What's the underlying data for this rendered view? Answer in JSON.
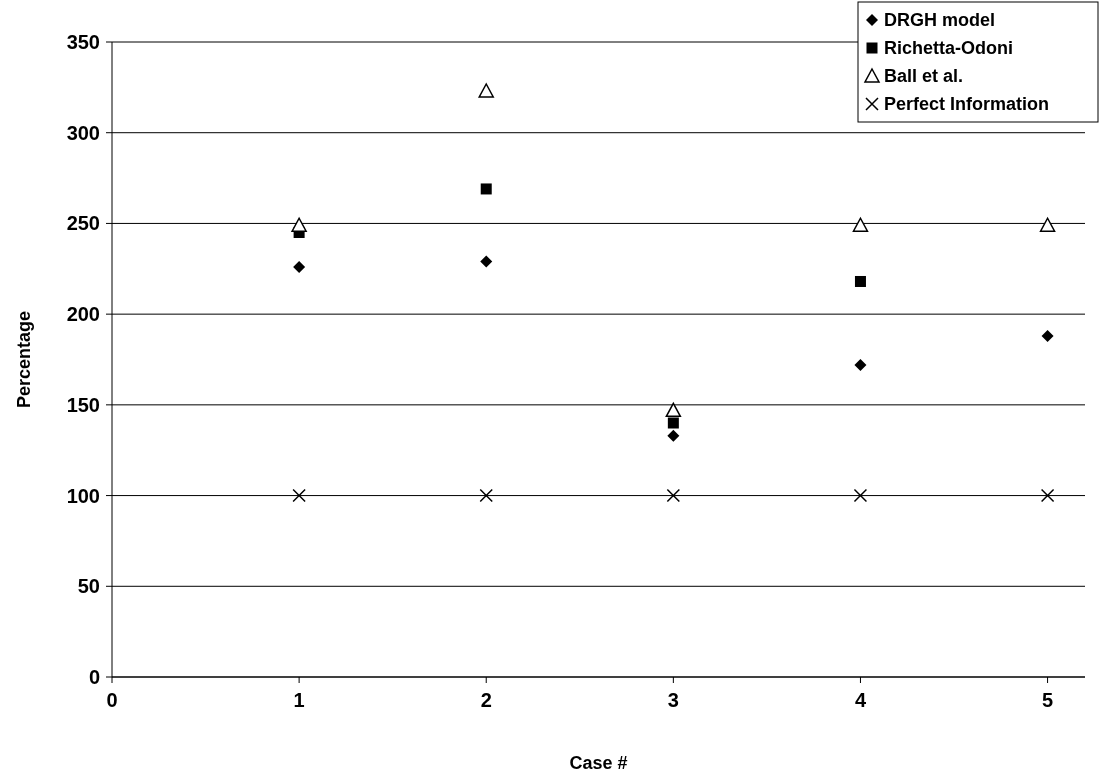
{
  "chart_data": {
    "type": "scatter",
    "xlabel": "Case #",
    "ylabel": "Percentage",
    "x": [
      1,
      2,
      3,
      4,
      5
    ],
    "series": [
      {
        "name": "DRGH model",
        "color": "#000000",
        "marker": "diamond",
        "values": [
          226,
          229,
          133,
          172,
          188
        ]
      },
      {
        "name": "Richetta-Odoni",
        "color": "#000000",
        "marker": "square",
        "values": [
          245,
          269,
          140,
          218,
          null
        ]
      },
      {
        "name": "Ball et al.",
        "color": "#000000",
        "marker": "triangle",
        "values": [
          249,
          323,
          147,
          249,
          249
        ]
      },
      {
        "name": "Perfect Information",
        "color": "#000000",
        "marker": "cross",
        "values": [
          100,
          100,
          100,
          100,
          100
        ]
      }
    ],
    "xlim": [
      0,
      5.2
    ],
    "xticks": [
      0,
      1,
      2,
      3,
      4,
      5
    ],
    "ylim": [
      0,
      350
    ],
    "yticks": [
      0,
      50,
      100,
      150,
      200,
      250,
      300,
      350
    ],
    "grid": "y",
    "legend": "top right"
  }
}
